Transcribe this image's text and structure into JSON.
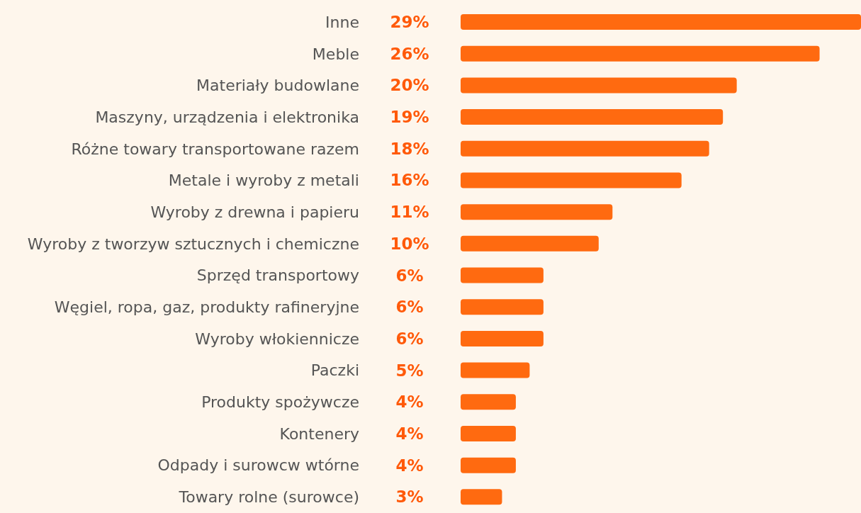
{
  "chart_data": {
    "type": "bar",
    "orientation": "horizontal",
    "categories": [
      "Inne",
      "Meble",
      "Materiały budowlane",
      "Maszyny, urządzenia i elektronika",
      "Różne towary transportowane razem",
      "Metale i wyroby z metali",
      "Wyroby z drewna i papieru",
      "Wyroby z tworzyw sztucznych i chemiczne",
      "Sprzęd transportowy",
      "Węgiel, ropa, gaz, produkty rafineryjne",
      "Wyroby włokiennicze",
      "Paczki",
      "Produkty spożywcze",
      "Kontenery",
      "Odpady i surowcw wtórne",
      "Towary rolne (surowce)"
    ],
    "values": [
      29,
      26,
      20,
      19,
      18,
      16,
      11,
      10,
      6,
      6,
      6,
      5,
      4,
      4,
      4,
      3
    ],
    "value_labels": [
      "29%",
      "26%",
      "20%",
      "19%",
      "18%",
      "16%",
      "11%",
      "10%",
      "6%",
      "6%",
      "6%",
      "5%",
      "4%",
      "4%",
      "4%",
      "3%"
    ],
    "color": "#ff6a10"
  }
}
